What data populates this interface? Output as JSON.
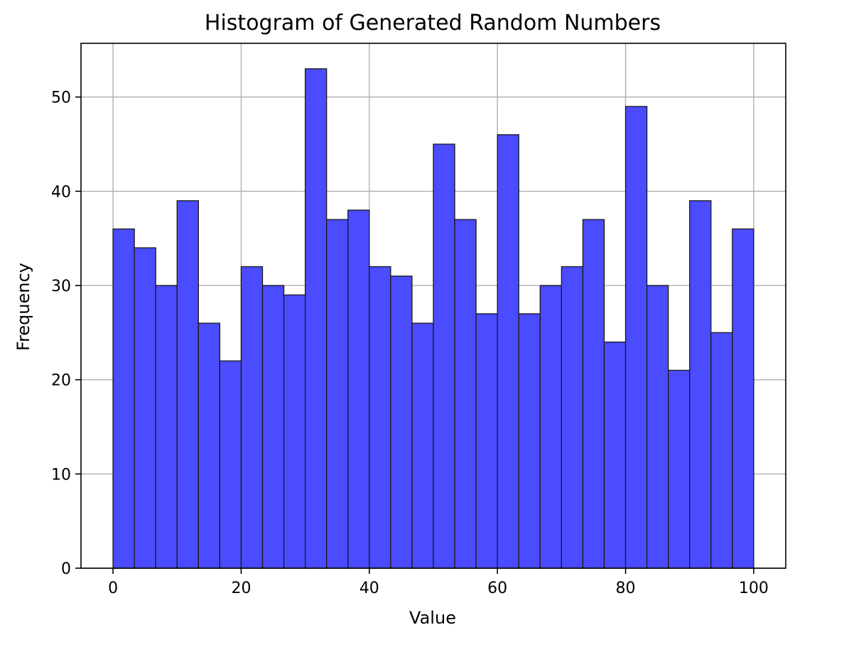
{
  "chart_data": {
    "type": "bar",
    "title": "Histogram of Generated Random Numbers",
    "xlabel": "Value",
    "ylabel": "Frequency",
    "xlim": [
      -5,
      105
    ],
    "ylim": [
      0,
      55.7
    ],
    "grid": true,
    "bin_edges": [
      0,
      3.333,
      6.667,
      10,
      13.333,
      16.667,
      20,
      23.333,
      26.667,
      30,
      33.333,
      36.667,
      40,
      43.333,
      46.667,
      50,
      53.333,
      56.667,
      60,
      63.333,
      66.667,
      70,
      73.333,
      76.667,
      80,
      83.333,
      86.667,
      90,
      93.333,
      96.667,
      100
    ],
    "values": [
      36,
      34,
      30,
      39,
      26,
      22,
      32,
      30,
      29,
      53,
      37,
      38,
      32,
      31,
      26,
      45,
      37,
      27,
      46,
      27,
      30,
      32,
      37,
      24,
      49,
      30,
      21,
      39,
      25,
      36
    ],
    "xticks": [
      0,
      20,
      40,
      60,
      80,
      100
    ],
    "xtick_labels": [
      "0",
      "20",
      "40",
      "60",
      "80",
      "100"
    ],
    "yticks": [
      0,
      10,
      20,
      30,
      40,
      50
    ],
    "ytick_labels": [
      "0",
      "10",
      "20",
      "30",
      "40",
      "50"
    ],
    "bar_color": "#4b4bff",
    "edge_color": "#1a1a1a",
    "grid_color": "#b0b0b0"
  }
}
